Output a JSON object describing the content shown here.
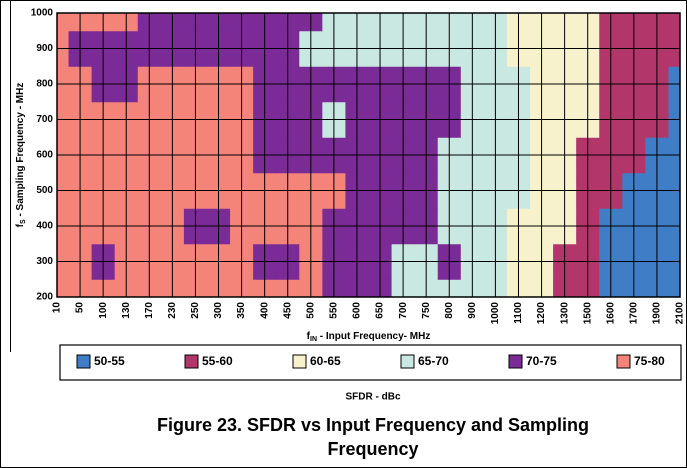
{
  "chart_data": {
    "type": "contour",
    "categories": [
      "10",
      "50",
      "100",
      "130",
      "170",
      "230",
      "250",
      "300",
      "350",
      "400",
      "450",
      "500",
      "550",
      "600",
      "650",
      "700",
      "750",
      "800",
      "900",
      "1000",
      "1100",
      "1200",
      "1300",
      "1500",
      "1600",
      "1700",
      "1900",
      "2100"
    ],
    "xlabel": {
      "main": "f",
      "sub": "IN",
      "rest": " - Input Frequency- MHz"
    },
    "ylabel": {
      "main": "f",
      "sub": "S",
      "rest": " - Sampling Frequency - MHz"
    },
    "ylim": [
      200,
      1000
    ],
    "yticks": [
      200,
      300,
      400,
      500,
      600,
      700,
      800,
      900,
      1000
    ],
    "y": [
      200,
      300,
      400,
      500,
      600,
      700,
      800,
      900,
      1000
    ],
    "z": [
      [
        77.5,
        77.5,
        77.5,
        77.5,
        77.5,
        77.5,
        77.5,
        77.5,
        77.5,
        77.5,
        77.5,
        77.5,
        72.5,
        72.5,
        72.5,
        67.5,
        67.5,
        67.5,
        67.5,
        67.5,
        62.5,
        62.5,
        57.5,
        57.5,
        52.5,
        52.5,
        52.5,
        52.5
      ],
      [
        77.5,
        77.5,
        72.5,
        77.5,
        77.5,
        77.5,
        77.5,
        77.5,
        77.5,
        72.5,
        72.5,
        77.5,
        72.5,
        72.5,
        72.5,
        67.5,
        67.5,
        72.5,
        67.5,
        67.5,
        62.5,
        62.5,
        57.5,
        57.5,
        52.5,
        52.5,
        52.5,
        52.5
      ],
      [
        77.5,
        77.5,
        77.5,
        77.5,
        77.5,
        77.5,
        72.5,
        72.5,
        77.5,
        77.5,
        77.5,
        77.5,
        72.5,
        72.5,
        72.5,
        72.5,
        72.5,
        67.5,
        67.5,
        67.5,
        62.5,
        62.5,
        62.5,
        57.5,
        52.5,
        52.5,
        52.5,
        52.5
      ],
      [
        77.5,
        77.5,
        77.5,
        77.5,
        77.5,
        77.5,
        77.5,
        77.5,
        77.5,
        77.5,
        77.5,
        77.5,
        77.5,
        72.5,
        72.5,
        72.5,
        72.5,
        67.5,
        67.5,
        67.5,
        67.5,
        62.5,
        62.5,
        57.5,
        57.5,
        52.5,
        52.5,
        52.5
      ],
      [
        77.5,
        77.5,
        77.5,
        77.5,
        77.5,
        77.5,
        77.5,
        77.5,
        77.5,
        72.5,
        72.5,
        72.5,
        72.5,
        72.5,
        72.5,
        72.5,
        72.5,
        67.5,
        67.5,
        67.5,
        67.5,
        62.5,
        62.5,
        57.5,
        57.5,
        57.5,
        52.5,
        52.5
      ],
      [
        77.5,
        77.5,
        77.5,
        77.5,
        77.5,
        77.5,
        77.5,
        77.5,
        77.5,
        72.5,
        72.5,
        72.5,
        67.5,
        72.5,
        72.5,
        72.5,
        72.5,
        72.5,
        67.5,
        67.5,
        67.5,
        62.5,
        62.5,
        62.5,
        57.5,
        57.5,
        57.5,
        52.5
      ],
      [
        77.5,
        77.5,
        72.5,
        72.5,
        77.5,
        77.5,
        77.5,
        77.5,
        77.5,
        72.5,
        72.5,
        72.5,
        72.5,
        72.5,
        72.5,
        72.5,
        72.5,
        72.5,
        67.5,
        67.5,
        67.5,
        62.5,
        62.5,
        62.5,
        57.5,
        57.5,
        57.5,
        52.5
      ],
      [
        77.5,
        72.5,
        72.5,
        72.5,
        72.5,
        72.5,
        72.5,
        72.5,
        72.5,
        72.5,
        72.5,
        67.5,
        67.5,
        67.5,
        67.5,
        67.5,
        67.5,
        67.5,
        67.5,
        67.5,
        62.5,
        62.5,
        62.5,
        62.5,
        57.5,
        57.5,
        57.5,
        57.5
      ],
      [
        77.5,
        77.5,
        77.5,
        77.5,
        72.5,
        72.5,
        72.5,
        72.5,
        72.5,
        72.5,
        72.5,
        72.5,
        67.5,
        67.5,
        67.5,
        67.5,
        67.5,
        67.5,
        67.5,
        67.5,
        62.5,
        62.5,
        62.5,
        62.5,
        57.5,
        57.5,
        57.5,
        57.5
      ]
    ],
    "levels": [
      {
        "label": "50-55",
        "color": "#3f7ec6"
      },
      {
        "label": "55-60",
        "color": "#b3366b"
      },
      {
        "label": "60-65",
        "color": "#f7f2cc"
      },
      {
        "label": "65-70",
        "color": "#c9e8e1"
      },
      {
        "label": "70-75",
        "color": "#7b2b96"
      },
      {
        "label": "75-80",
        "color": "#f4837a"
      }
    ],
    "legend_title": "SFDR - dBc",
    "caption": [
      "Figure 23. SFDR vs Input Frequency and Sampling",
      "Frequency"
    ],
    "left_fragment_label": "2100"
  }
}
